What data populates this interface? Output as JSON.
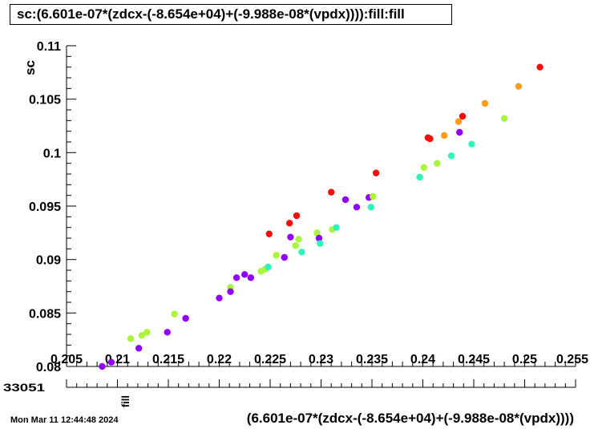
{
  "title": "sc:(6.601e-07*(zdcx-(-8.654e+04)+(-9.988e-08*(vpdx)))):fill:fill",
  "datestamp": "Mon Mar 11 12:44:48 2024",
  "chart_data": {
    "type": "scatter",
    "title": "sc:(6.601e-07*(zdcx-(-8.654e+04)+(-9.988e-08*(vpdx)))):fill:fill",
    "xlabel": "(6.601e-07*(zdcx-(-8.654e+04)+(-9.988e-08*(vpdx))))",
    "ylabel": "sc",
    "zlabel": "fill",
    "z_axis_label_fragment": "33051",
    "xlim": [
      0.205,
      0.255
    ],
    "ylim": [
      0.08,
      0.11
    ],
    "x_tick_labels": [
      "0.205",
      "0.21",
      "0.215",
      "0.22",
      "0.225",
      "0.23",
      "0.235",
      "0.24",
      "0.245",
      "0.25",
      "0.255"
    ],
    "x_ticks": [
      0.205,
      0.21,
      0.215,
      0.22,
      0.225,
      0.23,
      0.235,
      0.24,
      0.245,
      0.25,
      0.255
    ],
    "y_tick_labels": [
      "0.08",
      "0.085",
      "0.09",
      "0.095",
      "0.1",
      "0.105",
      "0.11"
    ],
    "y_ticks": [
      0.08,
      0.085,
      0.09,
      0.095,
      0.1,
      0.105,
      0.11
    ],
    "grid": false,
    "legend": "none",
    "color_scale": [
      "#8f00ff",
      "#2ef5b8",
      "#a8f53a",
      "#ff9c19",
      "#ff0808"
    ],
    "points": [
      {
        "x": 0.2085,
        "y": 0.08,
        "c": "#8f00ff"
      },
      {
        "x": 0.2094,
        "y": 0.0804,
        "c": "#8f00ff"
      },
      {
        "x": 0.2113,
        "y": 0.0826,
        "c": "#a8f53a"
      },
      {
        "x": 0.2121,
        "y": 0.0817,
        "c": "#8f00ff"
      },
      {
        "x": 0.2124,
        "y": 0.0829,
        "c": "#a8f53a"
      },
      {
        "x": 0.2129,
        "y": 0.0832,
        "c": "#a8f53a"
      },
      {
        "x": 0.2149,
        "y": 0.0832,
        "c": "#8f00ff"
      },
      {
        "x": 0.2156,
        "y": 0.0849,
        "c": "#a8f53a"
      },
      {
        "x": 0.2167,
        "y": 0.0845,
        "c": "#8f00ff"
      },
      {
        "x": 0.22,
        "y": 0.0864,
        "c": "#8f00ff"
      },
      {
        "x": 0.2211,
        "y": 0.0874,
        "c": "#a8f53a"
      },
      {
        "x": 0.2211,
        "y": 0.087,
        "c": "#8f00ff"
      },
      {
        "x": 0.2217,
        "y": 0.0883,
        "c": "#8f00ff"
      },
      {
        "x": 0.2225,
        "y": 0.0886,
        "c": "#8f00ff"
      },
      {
        "x": 0.2231,
        "y": 0.0883,
        "c": "#8f00ff"
      },
      {
        "x": 0.2241,
        "y": 0.0889,
        "c": "#a8f53a"
      },
      {
        "x": 0.2245,
        "y": 0.0891,
        "c": "#a8f53a"
      },
      {
        "x": 0.2248,
        "y": 0.0893,
        "c": "#2ef5b8"
      },
      {
        "x": 0.2249,
        "y": 0.0924,
        "c": "#ff0808"
      },
      {
        "x": 0.2256,
        "y": 0.0904,
        "c": "#a8f53a"
      },
      {
        "x": 0.2264,
        "y": 0.0902,
        "c": "#8f00ff"
      },
      {
        "x": 0.2269,
        "y": 0.0934,
        "c": "#ff0808"
      },
      {
        "x": 0.227,
        "y": 0.0921,
        "c": "#8f00ff"
      },
      {
        "x": 0.2275,
        "y": 0.0913,
        "c": "#a8f53a"
      },
      {
        "x": 0.2276,
        "y": 0.0941,
        "c": "#ff0808"
      },
      {
        "x": 0.2278,
        "y": 0.0919,
        "c": "#a8f53a"
      },
      {
        "x": 0.2281,
        "y": 0.0907,
        "c": "#2ef5b8"
      },
      {
        "x": 0.2296,
        "y": 0.0925,
        "c": "#a8f53a"
      },
      {
        "x": 0.2298,
        "y": 0.092,
        "c": "#8f00ff"
      },
      {
        "x": 0.2299,
        "y": 0.0915,
        "c": "#2ef5b8"
      },
      {
        "x": 0.231,
        "y": 0.0963,
        "c": "#ff0808"
      },
      {
        "x": 0.2311,
        "y": 0.0928,
        "c": "#a8f53a"
      },
      {
        "x": 0.2315,
        "y": 0.093,
        "c": "#2ef5b8"
      },
      {
        "x": 0.2324,
        "y": 0.0956,
        "c": "#8f00ff"
      },
      {
        "x": 0.2335,
        "y": 0.0949,
        "c": "#8f00ff"
      },
      {
        "x": 0.2347,
        "y": 0.0958,
        "c": "#8f00ff"
      },
      {
        "x": 0.2349,
        "y": 0.0949,
        "c": "#2ef5b8"
      },
      {
        "x": 0.2351,
        "y": 0.0959,
        "c": "#a8f53a"
      },
      {
        "x": 0.2354,
        "y": 0.0981,
        "c": "#ff0808"
      },
      {
        "x": 0.2397,
        "y": 0.0977,
        "c": "#2ef5b8"
      },
      {
        "x": 0.2401,
        "y": 0.0986,
        "c": "#a8f53a"
      },
      {
        "x": 0.2405,
        "y": 0.1014,
        "c": "#ff0808"
      },
      {
        "x": 0.2407,
        "y": 0.1013,
        "c": "#ff0808"
      },
      {
        "x": 0.2414,
        "y": 0.099,
        "c": "#a8f53a"
      },
      {
        "x": 0.2421,
        "y": 0.1016,
        "c": "#ff9c19"
      },
      {
        "x": 0.2428,
        "y": 0.0997,
        "c": "#2ef5b8"
      },
      {
        "x": 0.2435,
        "y": 0.1029,
        "c": "#ff9c19"
      },
      {
        "x": 0.2436,
        "y": 0.1019,
        "c": "#8f00ff"
      },
      {
        "x": 0.2439,
        "y": 0.1034,
        "c": "#ff0808"
      },
      {
        "x": 0.2448,
        "y": 0.1008,
        "c": "#2ef5b8"
      },
      {
        "x": 0.2461,
        "y": 0.1046,
        "c": "#ff9c19"
      },
      {
        "x": 0.248,
        "y": 0.1032,
        "c": "#a8f53a"
      },
      {
        "x": 0.2494,
        "y": 0.1062,
        "c": "#ff9c19"
      },
      {
        "x": 0.2515,
        "y": 0.108,
        "c": "#ff0808"
      }
    ]
  }
}
